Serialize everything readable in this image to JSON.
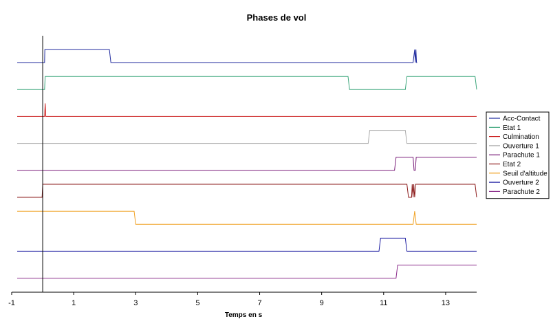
{
  "chart_data": {
    "type": "line",
    "title": "Phases de vol",
    "xlabel": "Temps en s",
    "ylabel": "",
    "xlim": [
      -1,
      14
    ],
    "xticks": [
      -1,
      1,
      3,
      5,
      7,
      9,
      11,
      13
    ],
    "grid": false,
    "legend_position": "right",
    "reference_line_x": 0,
    "series": [
      {
        "name": "Acc-Contact",
        "color": "#1f2a9e",
        "x": [
          0,
          0.06,
          0.07,
          0.1,
          0.11,
          2.15,
          2.2,
          11.95,
          12.0,
          12.02,
          12.04,
          12.06,
          12.08
        ],
        "y": [
          0,
          0,
          1,
          1,
          1,
          1,
          0,
          0,
          1,
          0,
          1,
          0,
          0
        ]
      },
      {
        "name": "Etat 1",
        "color": "#3aa57a",
        "x": [
          0,
          0.06,
          0.08,
          0.1,
          9.85,
          9.9,
          11.7,
          11.75,
          13.95,
          14.0
        ],
        "y": [
          0,
          0,
          1,
          1,
          1,
          0,
          0,
          1,
          1,
          0
        ]
      },
      {
        "name": "Culmination",
        "color": "#cc2222",
        "x": [
          0,
          0.06,
          0.08,
          0.1,
          14.0
        ],
        "y": [
          0,
          0,
          1,
          0,
          0
        ]
      },
      {
        "name": "Ouverture 1",
        "color": "#a9a9a9",
        "x": [
          0,
          10.5,
          10.55,
          11.7,
          11.75,
          14.0
        ],
        "y": [
          0,
          0,
          1,
          1,
          0,
          0
        ]
      },
      {
        "name": "Parachute 1",
        "color": "#7a1f7a",
        "x": [
          0,
          11.35,
          11.4,
          11.95,
          11.98,
          12.02,
          12.05,
          14.0
        ],
        "y": [
          0,
          0,
          1,
          1,
          0,
          0,
          1,
          1
        ]
      },
      {
        "name": "Etat 2",
        "color": "#8b1a1a",
        "x": [
          -0.05,
          -0.02,
          0,
          11.75,
          11.8,
          11.9,
          11.92,
          11.95,
          11.97,
          12.0,
          12.03,
          12.05,
          13.95,
          14.0
        ],
        "y": [
          0,
          0,
          1,
          1,
          0,
          0,
          1,
          0,
          1,
          0,
          1,
          1,
          1,
          0
        ]
      },
      {
        "name": "Seuil d'altitude",
        "color": "#f0a020",
        "x": [
          0,
          2.95,
          3.0,
          11.95,
          12.0,
          12.05,
          14.0
        ],
        "y": [
          1,
          1,
          0,
          0,
          1,
          0,
          0
        ]
      },
      {
        "name": "Ouverture 2",
        "color": "#1a1aa0",
        "x": [
          0,
          10.85,
          10.9,
          11.7,
          11.75,
          14.0
        ],
        "y": [
          0,
          0,
          1,
          1,
          0,
          0
        ]
      },
      {
        "name": "Parachute 2",
        "color": "#8a2a8a",
        "x": [
          0,
          11.4,
          11.45,
          14.0
        ],
        "y": [
          0,
          0,
          1,
          1
        ]
      }
    ]
  }
}
